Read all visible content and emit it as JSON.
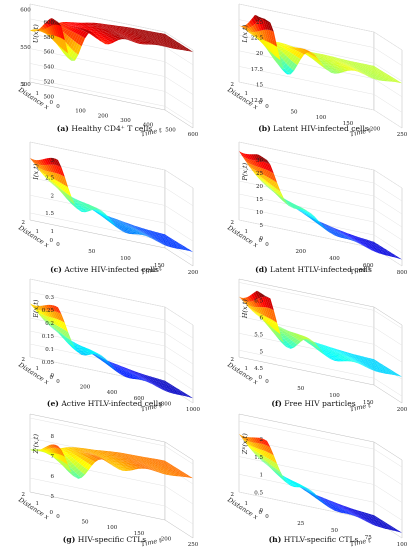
{
  "chart_data": [
    {
      "type": "surface",
      "caption_label": "(a)",
      "caption_text": "Healthy CD4⁺ T cells",
      "zlabel": "U(x,t)",
      "xlabel": "Distance x",
      "ylabel": "Time t",
      "z_ticks": [
        "500",
        "520",
        "540",
        "560",
        "580",
        "600"
      ],
      "zlim": [
        495,
        600
      ],
      "x_ticks": [
        "0",
        "1",
        "2"
      ],
      "t_ticks": [
        "0",
        "100",
        "200",
        "300",
        "400",
        "500",
        "600"
      ],
      "tmax": 600,
      "profile": {
        "start": 560,
        "end": 598,
        "tau": 0.25,
        "wave_amp": 45,
        "wave_decay": 0.18,
        "wave_freq": 4.0,
        "color_min": 495,
        "color_max": 600
      },
      "y_marks": [
        "500",
        "550",
        "600"
      ]
    },
    {
      "type": "surface",
      "caption_label": "(b)",
      "caption_text": "Latent HIV-infected cells",
      "zlabel": "L(x,t)",
      "xlabel": "Distance x",
      "ylabel": "Time t",
      "z_ticks": [
        "12.5",
        "15",
        "17.5",
        "20",
        "22.5",
        "25"
      ],
      "zlim": [
        12.5,
        25
      ],
      "x_ticks": [
        "0",
        "1",
        "2"
      ],
      "t_ticks": [
        "0",
        "50",
        "100",
        "150",
        "200",
        "250"
      ],
      "tmax": 250,
      "profile": {
        "start": 21,
        "end": 19.5,
        "tau": 0.3,
        "wave_amp": 6,
        "wave_decay": 0.25,
        "wave_freq": 3.0,
        "color_min": 12.5,
        "color_max": 25
      }
    },
    {
      "type": "surface",
      "caption_label": "(c)",
      "caption_text": "Active HIV-infected cells",
      "zlabel": "I(x,t)",
      "xlabel": "Distance x",
      "ylabel": "Time t",
      "z_ticks": [
        "1",
        "1.5",
        "2",
        "2.5",
        "3"
      ],
      "zlim": [
        0.8,
        3
      ],
      "x_ticks": [
        "0",
        "1",
        "2"
      ],
      "t_ticks": [
        "0",
        "50",
        "100",
        "150",
        "200"
      ],
      "tmax": 200,
      "profile": {
        "start": 2.5,
        "end": 1.1,
        "tau": 0.35,
        "wave_amp": 0.5,
        "wave_decay": 0.3,
        "wave_freq": 3.0,
        "color_min": 0.8,
        "color_max": 3
      }
    },
    {
      "type": "surface",
      "caption_label": "(d)",
      "caption_text": "Latent HTLV-infected cells",
      "zlabel": "P(x,t)",
      "xlabel": "Distance x",
      "ylabel": "Time t",
      "z_ticks": [
        "0",
        "5",
        "10",
        "15",
        "20",
        "25",
        "30"
      ],
      "zlim": [
        0,
        30
      ],
      "x_ticks": [
        "0",
        "1",
        "2"
      ],
      "t_ticks": [
        "0",
        "200",
        "400",
        "600",
        "800"
      ],
      "tmax": 800,
      "profile": {
        "start": 26,
        "end": 0.5,
        "tau": 0.38,
        "wave_amp": 5,
        "wave_decay": 0.3,
        "wave_freq": 3.0,
        "color_min": 0,
        "color_max": 30
      }
    },
    {
      "type": "surface",
      "caption_label": "(e)",
      "caption_text": "Active HTLV-infected cells",
      "zlabel": "E(x,t)",
      "xlabel": "Distance x",
      "ylabel": "Time t",
      "z_ticks": [
        "0",
        "0.05",
        "0.1",
        "0.15",
        "0.2",
        "0.25",
        "0.3"
      ],
      "zlim": [
        0,
        0.3
      ],
      "x_ticks": [
        "0",
        "1",
        "2"
      ],
      "t_ticks": [
        "0",
        "200",
        "400",
        "600",
        "800",
        "1000"
      ],
      "tmax": 1000,
      "profile": {
        "start": 0.2,
        "end": 0.0,
        "tau": 0.4,
        "wave_amp": 0.06,
        "wave_decay": 0.3,
        "wave_freq": 3.0,
        "color_min": 0,
        "color_max": 0.3
      }
    },
    {
      "type": "surface",
      "caption_label": "(f)",
      "caption_text": "Free HIV particles",
      "zlabel": "H(x,t)",
      "xlabel": "Distance x",
      "ylabel": "Time t",
      "z_ticks": [
        "4.5",
        "5",
        "5.5",
        "6",
        "6.5"
      ],
      "zlim": [
        4.3,
        6.6
      ],
      "x_ticks": [
        "0",
        "1",
        "2"
      ],
      "t_ticks": [
        "0",
        "50",
        "100",
        "150",
        "200"
      ],
      "tmax": 200,
      "profile": {
        "start": 6.0,
        "end": 5.0,
        "tau": 0.35,
        "wave_amp": 0.8,
        "wave_decay": 0.25,
        "wave_freq": 3.0,
        "color_min": 4.3,
        "color_max": 6.6
      }
    },
    {
      "type": "surface",
      "caption_label": "(g)",
      "caption_text": "HIV-specific CTLs",
      "zlabel": "Zᴵ(x,t)",
      "xlabel": "Distance x",
      "ylabel": "Time t",
      "z_ticks": [
        "5",
        "6",
        "7",
        "8"
      ],
      "zlim": [
        4.3,
        8.2
      ],
      "x_ticks": [
        "0",
        "1",
        "2"
      ],
      "t_ticks": [
        "0",
        "50",
        "100",
        "150",
        "200",
        "250"
      ],
      "tmax": 250,
      "profile": {
        "start": 6.3,
        "end": 7.3,
        "tau": 0.3,
        "wave_amp": 1.2,
        "wave_decay": 0.25,
        "wave_freq": 3.0,
        "color_min": 4.3,
        "color_max": 8.2
      }
    },
    {
      "type": "surface",
      "caption_label": "(h)",
      "caption_text": "HTLV-specific CTLs",
      "zlabel": "Zᴱ(x,t)",
      "xlabel": "Distance x",
      "ylabel": "Time t",
      "z_ticks": [
        "0",
        "0.5",
        "1",
        "1.5",
        "2"
      ],
      "zlim": [
        0,
        2.2
      ],
      "x_ticks": [
        "0",
        "1",
        "2"
      ],
      "t_ticks": [
        "0",
        "25",
        "50",
        "75",
        "100"
      ],
      "tmax": 100,
      "profile": {
        "start": 1.6,
        "end": 0.02,
        "tau": 0.38,
        "wave_amp": 0.35,
        "wave_decay": 0.3,
        "wave_freq": 3.0,
        "color_min": 0,
        "color_max": 2.2
      }
    }
  ]
}
